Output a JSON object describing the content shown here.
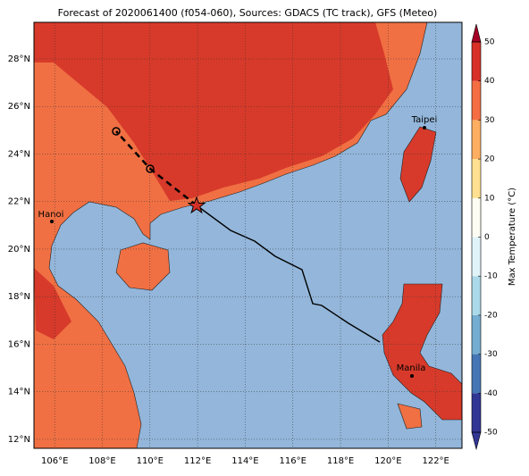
{
  "map": {
    "title": "Forecast of 2020061400 (f054-060), Sources: GDACS (TC track), GFS (Meteo)",
    "lonlim": [
      105.13,
      123.1
    ],
    "latlim": [
      11.62,
      29.54
    ],
    "lon_ticks": [
      {
        "value": 106,
        "label": "106°E"
      },
      {
        "value": 108,
        "label": "108°E"
      },
      {
        "value": 110,
        "label": "110°E"
      },
      {
        "value": 112,
        "label": "112°E"
      },
      {
        "value": 114,
        "label": "114°E"
      },
      {
        "value": 116,
        "label": "116°E"
      },
      {
        "value": 118,
        "label": "118°E"
      },
      {
        "value": 120,
        "label": "120°E"
      },
      {
        "value": 122,
        "label": "122°E"
      }
    ],
    "lat_ticks": [
      {
        "value": 12,
        "label": "12°N"
      },
      {
        "value": 14,
        "label": "14°N"
      },
      {
        "value": 16,
        "label": "16°N"
      },
      {
        "value": 18,
        "label": "18°N"
      },
      {
        "value": 20,
        "label": "20°N"
      },
      {
        "value": 22,
        "label": "22°N"
      },
      {
        "value": 24,
        "label": "24°N"
      },
      {
        "value": 26,
        "label": "26°N"
      },
      {
        "value": 28,
        "label": "28°N"
      }
    ],
    "cities": [
      "Taipei",
      "Hanoi",
      "Manila"
    ],
    "colorbar": {
      "label": "Max Temperature (°C)",
      "lim": [
        -50,
        50
      ],
      "ticks": [
        -50,
        -40,
        -30,
        -20,
        -10,
        0,
        10,
        20,
        30,
        40,
        50
      ],
      "colors": [
        "#313695",
        "#4575b4",
        "#74add1",
        "#abd9e9",
        "#e0f3f8",
        "#fdfdf3",
        "#fee090",
        "#fdae61",
        "#f46d43",
        "#d73027",
        "#a50026"
      ]
    }
  }
}
